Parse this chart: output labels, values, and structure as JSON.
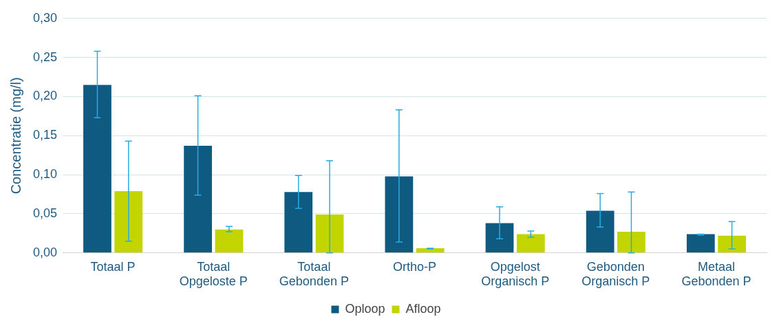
{
  "chart_data": {
    "type": "bar",
    "ylabel": "Concentratie (mg/l)",
    "categories": [
      "Totaal P",
      "Totaal Opgeloste P",
      "Totaal Gebonden P",
      "Ortho-P",
      "Opgelost Organisch P",
      "Gebonden Organisch P",
      "Metaal Gebonden P"
    ],
    "series": [
      {
        "name": "Oploop",
        "color": "#0f5a80",
        "values": [
          0.215,
          0.137,
          0.078,
          0.098,
          0.038,
          0.054,
          0.024
        ],
        "errors": [
          [
            0.173,
            0.258
          ],
          [
            0.074,
            0.201
          ],
          [
            0.057,
            0.099
          ],
          [
            0.014,
            0.183
          ],
          [
            0.018,
            0.059
          ],
          [
            0.033,
            0.076
          ],
          [
            0.023,
            0.024
          ]
        ]
      },
      {
        "name": "Afloop",
        "color": "#c3d500",
        "values": [
          0.079,
          0.03,
          0.049,
          0.006,
          0.024,
          0.027,
          0.022
        ],
        "errors": [
          [
            0.015,
            0.143
          ],
          [
            0.027,
            0.034
          ],
          [
            0.0,
            0.118
          ],
          [
            0.005,
            0.006
          ],
          [
            0.02,
            0.028
          ],
          [
            0.0,
            0.078
          ],
          [
            0.005,
            0.04
          ]
        ]
      }
    ],
    "ylim": [
      0,
      0.3
    ],
    "yticks": [
      {
        "value": 0,
        "label": "0,00"
      },
      {
        "value": 0.05,
        "label": "0,05"
      },
      {
        "value": 0.1,
        "label": "0,10"
      },
      {
        "value": 0.15,
        "label": "0,15"
      },
      {
        "value": 0.2,
        "label": "0,20"
      },
      {
        "value": 0.25,
        "label": "0,25"
      },
      {
        "value": 0.3,
        "label": "0,30"
      }
    ],
    "grid": "y",
    "legend": "bottom"
  }
}
